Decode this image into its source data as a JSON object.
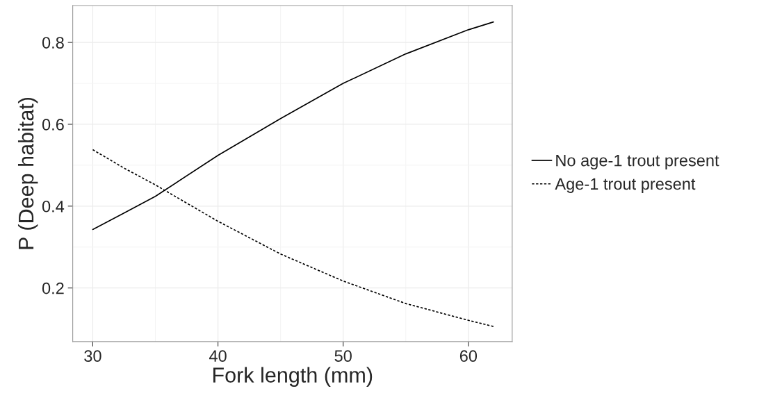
{
  "chart_data": {
    "type": "line",
    "xlabel": "Fork length (mm)",
    "ylabel": "P (Deep habitat)",
    "series": [
      {
        "name": "No age-1 trout present",
        "color": "#000000",
        "line_style": "solid",
        "x": [
          30,
          32.5,
          35,
          40,
          45,
          50,
          55,
          60,
          62
        ],
        "values": [
          0.343,
          0.383,
          0.424,
          0.524,
          0.614,
          0.7,
          0.772,
          0.831,
          0.85
        ]
      },
      {
        "name": "Age-1 trout present",
        "color": "#000000",
        "line_style": "dotted",
        "x": [
          30,
          32.5,
          35,
          40,
          45,
          50,
          55,
          60,
          62
        ],
        "values": [
          0.538,
          0.493,
          0.452,
          0.363,
          0.283,
          0.217,
          0.162,
          0.121,
          0.106
        ]
      }
    ],
    "xlim": [
      28.4,
      63.5
    ],
    "ylim": [
      0.069,
      0.89
    ],
    "xticks": [
      30,
      40,
      50,
      60
    ],
    "yticks": [
      0.2,
      0.4,
      0.6,
      0.8
    ],
    "grid": true,
    "legend": "right",
    "marker": "none"
  }
}
